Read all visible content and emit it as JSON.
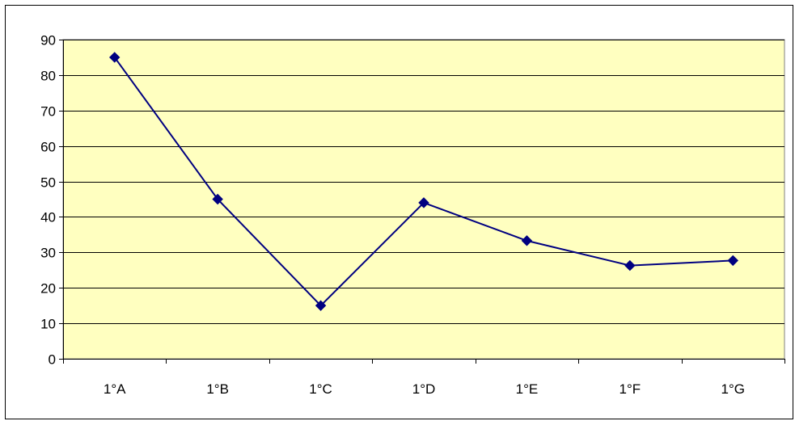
{
  "chart_data": {
    "type": "line",
    "title": "",
    "xlabel": "",
    "ylabel": "",
    "categories": [
      "1°A",
      "1°B",
      "1°C",
      "1°D",
      "1°E",
      "1°F",
      "1°G"
    ],
    "series": [
      {
        "values": [
          85,
          45,
          15,
          44,
          33.3,
          26.3,
          27.7
        ],
        "color": "#000080",
        "marker": "diamond"
      }
    ],
    "ylim": [
      0,
      90
    ],
    "yticks": [
      0,
      10,
      20,
      30,
      40,
      50,
      60,
      70,
      80,
      90
    ],
    "grid": true,
    "legend": "none",
    "plot_background": "#FFFFC0",
    "gridline_color": "#000000"
  }
}
